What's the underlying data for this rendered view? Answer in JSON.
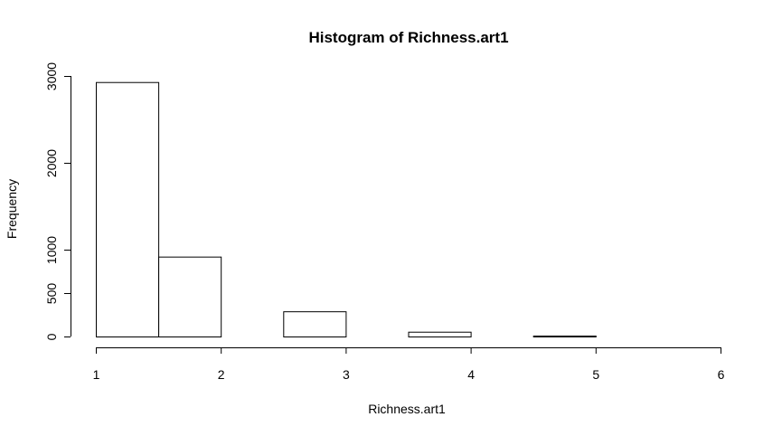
{
  "chart_data": {
    "type": "bar",
    "title": "Histogram of Richness.art1",
    "xlabel": "Richness.art1",
    "ylabel": "Frequency",
    "xlim": [
      1,
      6
    ],
    "ylim": [
      0,
      3000
    ],
    "x_ticks": [
      1,
      2,
      3,
      4,
      5,
      6
    ],
    "y_ticks": [
      0,
      500,
      1000,
      2000,
      3000
    ],
    "bins": [
      {
        "start": 1.0,
        "end": 1.5,
        "count": 2930
      },
      {
        "start": 1.5,
        "end": 2.0,
        "count": 920
      },
      {
        "start": 2.0,
        "end": 2.5,
        "count": 0
      },
      {
        "start": 2.5,
        "end": 3.0,
        "count": 290
      },
      {
        "start": 3.0,
        "end": 3.5,
        "count": 0
      },
      {
        "start": 3.5,
        "end": 4.0,
        "count": 55
      },
      {
        "start": 4.0,
        "end": 4.5,
        "count": 0
      },
      {
        "start": 4.5,
        "end": 5.0,
        "count": 10
      },
      {
        "start": 5.0,
        "end": 5.5,
        "count": 0
      },
      {
        "start": 5.5,
        "end": 6.0,
        "count": 0
      }
    ],
    "grid": false,
    "legend": "none"
  },
  "colors": {
    "bar_fill": "#ffffff",
    "bar_stroke": "#000000",
    "background": "#ffffff"
  }
}
